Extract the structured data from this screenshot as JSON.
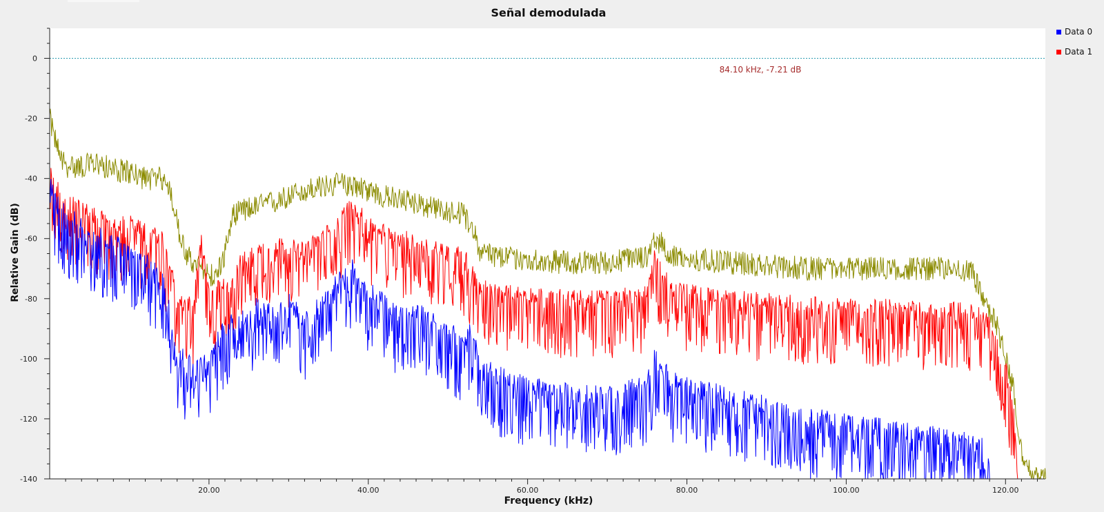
{
  "chart_data": {
    "type": "line",
    "title": "Señal demodulada",
    "xlabel": "Frequency (kHz)",
    "ylabel": "Relative Gain (dB)",
    "xlim": [
      0,
      125
    ],
    "ylim": [
      -140,
      10
    ],
    "x_ticks": [
      20,
      40,
      60,
      80,
      100,
      120
    ],
    "x_tick_labels": [
      "20.00",
      "40.00",
      "60.00",
      "80.00",
      "100.00",
      "120.00"
    ],
    "y_ticks": [
      0,
      -20,
      -40,
      -60,
      -80,
      -100,
      -120,
      -140
    ],
    "y_tick_labels": [
      "0",
      "-20",
      "-40",
      "-60",
      "-80",
      "-100",
      "-120",
      "-140"
    ],
    "grid": false,
    "legend_position": "top-right",
    "reference_line": {
      "y": 0,
      "color": "#2a9bb0"
    },
    "marker": {
      "text": "84.10 kHz, -7.21 dB",
      "color": "#a52a2a"
    },
    "series": [
      {
        "name": "Data 0",
        "color": "#0000ff",
        "x": [
          0,
          2,
          4,
          6,
          8,
          10,
          12,
          14,
          15,
          16,
          18,
          20,
          22,
          24,
          26,
          28,
          30,
          32,
          34,
          36,
          38,
          40,
          42,
          44,
          46,
          48,
          50,
          52,
          53,
          54,
          56,
          58,
          60,
          65,
          70,
          75,
          76,
          78,
          80,
          85,
          90,
          95,
          100,
          105,
          110,
          115,
          117,
          118
        ],
        "values": [
          -45,
          -55,
          -58,
          -62,
          -64,
          -68,
          -70,
          -74,
          -85,
          -100,
          -105,
          -103,
          -92,
          -90,
          -85,
          -88,
          -84,
          -90,
          -85,
          -78,
          -72,
          -80,
          -84,
          -88,
          -86,
          -90,
          -93,
          -98,
          -92,
          -105,
          -108,
          -110,
          -112,
          -114,
          -115,
          -111,
          -102,
          -110,
          -112,
          -115,
          -118,
          -122,
          -124,
          -126,
          -128,
          -130,
          -132,
          -136
        ],
        "noise_down": 18,
        "noise_up": 6
      },
      {
        "name": "Data 1",
        "color": "#ff0000",
        "x": [
          0,
          2,
          4,
          6,
          8,
          10,
          12,
          14,
          15,
          16,
          18,
          19,
          20,
          22,
          24,
          26,
          28,
          30,
          32,
          34,
          36,
          38,
          40,
          42,
          44,
          46,
          48,
          50,
          52,
          53,
          54,
          56,
          60,
          65,
          70,
          75,
          76,
          78,
          80,
          85,
          90,
          95,
          100,
          105,
          110,
          115,
          117,
          118,
          119,
          120,
          121,
          121.5
        ],
        "values": [
          -40,
          -50,
          -52,
          -55,
          -58,
          -57,
          -60,
          -62,
          -70,
          -82,
          -85,
          -62,
          -80,
          -78,
          -70,
          -66,
          -64,
          -65,
          -66,
          -62,
          -58,
          -50,
          -58,
          -60,
          -62,
          -63,
          -65,
          -66,
          -68,
          -72,
          -78,
          -80,
          -81,
          -82,
          -82,
          -80,
          -68,
          -78,
          -80,
          -82,
          -83,
          -84,
          -85,
          -85,
          -86,
          -86,
          -88,
          -90,
          -96,
          -105,
          -120,
          -140
        ],
        "noise_down": 18,
        "noise_up": 5
      },
      {
        "name": "",
        "color": "#8b8b00",
        "x": [
          0,
          1,
          2,
          4,
          6,
          8,
          10,
          12,
          14,
          15,
          16,
          17,
          18,
          20,
          21,
          22,
          23,
          25,
          28,
          30,
          32,
          34,
          36,
          38,
          40,
          42,
          44,
          46,
          48,
          50,
          52,
          53,
          54,
          56,
          60,
          65,
          70,
          75,
          76,
          77,
          78,
          80,
          85,
          90,
          95,
          100,
          105,
          110,
          114,
          116,
          117,
          118,
          119,
          120,
          121,
          122,
          123,
          124,
          125
        ],
        "values": [
          -20,
          -30,
          -36,
          -36,
          -35,
          -37,
          -38,
          -40,
          -40,
          -42,
          -55,
          -65,
          -68,
          -72,
          -72,
          -65,
          -52,
          -50,
          -48,
          -46,
          -44,
          -43,
          -42,
          -42,
          -44,
          -46,
          -47,
          -48,
          -50,
          -51,
          -52,
          -56,
          -64,
          -66,
          -67,
          -68,
          -68,
          -66,
          -60,
          -62,
          -66,
          -67,
          -68,
          -69,
          -70,
          -70,
          -70,
          -70,
          -70,
          -72,
          -78,
          -84,
          -90,
          -100,
          -110,
          -130,
          -138,
          -140,
          -140
        ],
        "noise_down": 4,
        "noise_up": 4
      }
    ]
  }
}
